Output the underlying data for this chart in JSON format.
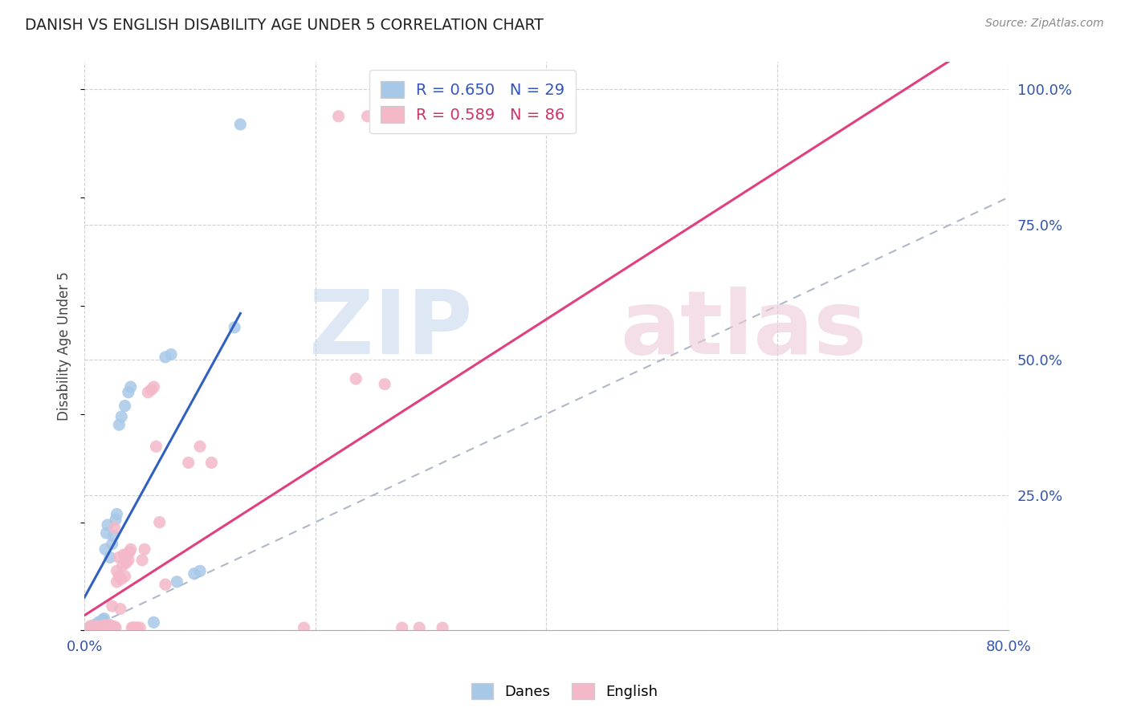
{
  "title": "DANISH VS ENGLISH DISABILITY AGE UNDER 5 CORRELATION CHART",
  "source": "Source: ZipAtlas.com",
  "ylabel": "Disability Age Under 5",
  "xlim": [
    0.0,
    0.8
  ],
  "ylim": [
    0.0,
    1.05
  ],
  "xticks": [
    0.0,
    0.2,
    0.4,
    0.6,
    0.8
  ],
  "xtick_labels": [
    "0.0%",
    "",
    "",
    "",
    "80.0%"
  ],
  "ytick_positions": [
    0.0,
    0.25,
    0.5,
    0.75,
    1.0
  ],
  "ytick_labels": [
    "",
    "25.0%",
    "50.0%",
    "75.0%",
    "100.0%"
  ],
  "danes_R": 0.65,
  "danes_N": 29,
  "english_R": 0.589,
  "english_N": 86,
  "danes_color": "#a8c8e8",
  "english_color": "#f4b8c8",
  "danes_line_color": "#3060c0",
  "english_line_color": "#e04080",
  "background_color": "#ffffff",
  "grid_color": "#d0d0d0",
  "danes_x": [
    0.005,
    0.008,
    0.01,
    0.012,
    0.013,
    0.015,
    0.016,
    0.017,
    0.018,
    0.019,
    0.02,
    0.022,
    0.024,
    0.025,
    0.027,
    0.028,
    0.03,
    0.032,
    0.035,
    0.038,
    0.04,
    0.06,
    0.07,
    0.075,
    0.08,
    0.095,
    0.1,
    0.13,
    0.135
  ],
  "danes_y": [
    0.005,
    0.01,
    0.008,
    0.015,
    0.012,
    0.018,
    0.02,
    0.022,
    0.15,
    0.18,
    0.195,
    0.135,
    0.16,
    0.175,
    0.205,
    0.215,
    0.38,
    0.395,
    0.415,
    0.44,
    0.45,
    0.015,
    0.505,
    0.51,
    0.09,
    0.105,
    0.11,
    0.56,
    0.935
  ],
  "english_x": [
    0.005,
    0.005,
    0.006,
    0.007,
    0.007,
    0.008,
    0.008,
    0.009,
    0.009,
    0.009,
    0.01,
    0.01,
    0.01,
    0.01,
    0.011,
    0.011,
    0.012,
    0.012,
    0.012,
    0.013,
    0.013,
    0.014,
    0.014,
    0.015,
    0.015,
    0.015,
    0.016,
    0.016,
    0.017,
    0.017,
    0.018,
    0.018,
    0.018,
    0.019,
    0.02,
    0.02,
    0.021,
    0.021,
    0.022,
    0.022,
    0.023,
    0.023,
    0.024,
    0.025,
    0.026,
    0.026,
    0.027,
    0.028,
    0.028,
    0.03,
    0.03,
    0.031,
    0.032,
    0.033,
    0.034,
    0.035,
    0.036,
    0.037,
    0.038,
    0.039,
    0.04,
    0.041,
    0.042,
    0.043,
    0.045,
    0.046,
    0.048,
    0.05,
    0.052,
    0.055,
    0.058,
    0.06,
    0.062,
    0.065,
    0.07,
    0.09,
    0.1,
    0.11,
    0.19,
    0.22,
    0.235,
    0.245,
    0.26,
    0.275,
    0.29,
    0.31
  ],
  "english_y": [
    0.005,
    0.008,
    0.005,
    0.005,
    0.008,
    0.005,
    0.007,
    0.005,
    0.005,
    0.007,
    0.005,
    0.005,
    0.007,
    0.008,
    0.005,
    0.007,
    0.005,
    0.006,
    0.008,
    0.005,
    0.007,
    0.005,
    0.007,
    0.005,
    0.005,
    0.008,
    0.005,
    0.007,
    0.005,
    0.008,
    0.005,
    0.007,
    0.01,
    0.005,
    0.005,
    0.008,
    0.005,
    0.007,
    0.005,
    0.01,
    0.005,
    0.008,
    0.045,
    0.005,
    0.007,
    0.19,
    0.005,
    0.09,
    0.11,
    0.1,
    0.135,
    0.04,
    0.095,
    0.12,
    0.14,
    0.1,
    0.125,
    0.14,
    0.13,
    0.145,
    0.15,
    0.005,
    0.005,
    0.005,
    0.005,
    0.005,
    0.005,
    0.13,
    0.15,
    0.44,
    0.445,
    0.45,
    0.34,
    0.2,
    0.085,
    0.31,
    0.34,
    0.31,
    0.005,
    0.95,
    0.465,
    0.95,
    0.455,
    0.005,
    0.005,
    0.005
  ]
}
